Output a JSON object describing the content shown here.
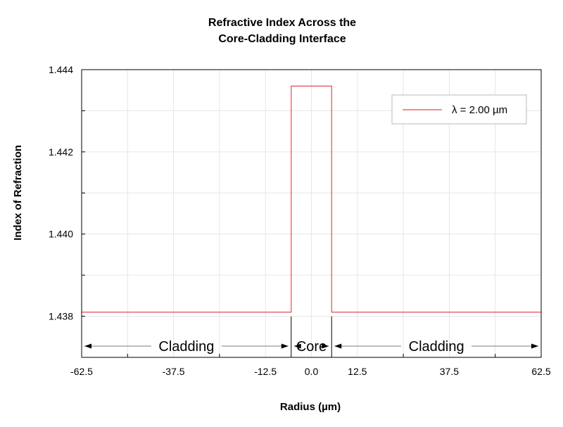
{
  "chart_data": {
    "type": "line",
    "title": "Refractive Index Across the",
    "subtitle": "Core-Cladding Interface",
    "xlabel": "Radius (µm)",
    "ylabel": "Index of Refraction",
    "xlim": [
      -62.5,
      62.5
    ],
    "ylim": [
      1.437,
      1.444
    ],
    "x_ticks": [
      "-62.5",
      "-37.5",
      "-12.5",
      "0.0",
      "12.5",
      "37.5",
      "62.5"
    ],
    "y_ticks": [
      "1.438",
      "1.440",
      "1.442",
      "1.444"
    ],
    "grid": true,
    "legend_position": "top-right",
    "series": [
      {
        "name": "λ = 2.00 µm",
        "color": "#e8484f",
        "x": [
          -62.5,
          -5.5,
          -5.5,
          5.5,
          5.5,
          62.5
        ],
        "y": [
          1.4381,
          1.4381,
          1.4436,
          1.4436,
          1.4381,
          1.4381
        ]
      }
    ],
    "annotations": {
      "left_region": "Cladding",
      "core_region": "Core",
      "right_region": "Cladding",
      "core_boundaries": [
        -5.5,
        5.5
      ]
    }
  }
}
